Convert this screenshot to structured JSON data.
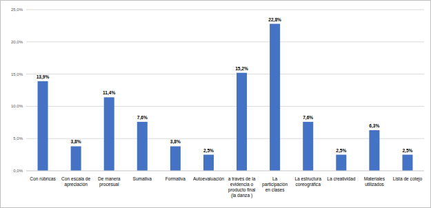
{
  "chart_data": {
    "type": "bar",
    "categories": [
      "Con rúbricas",
      "Con escala de apreciación",
      "De manera procesual",
      "Sumativa",
      "Formativa",
      "Autoevaluación",
      "a través de la evidencia o producto final (la danza )",
      "La participación en clases",
      "La estructura coreográfica",
      "La creatividad",
      "Materiales utilizados",
      "Lista de cotejo"
    ],
    "values": [
      13.9,
      3.8,
      11.4,
      7.6,
      3.8,
      2.5,
      15.2,
      22.8,
      7.6,
      2.5,
      6.3,
      2.5
    ],
    "value_labels": [
      "13,9%",
      "3,8%",
      "11,4%",
      "7,6%",
      "3,8%",
      "2,5%",
      "15,2%",
      "22,8%",
      "7,6%",
      "2,5%",
      "6,3%",
      "2,5%"
    ],
    "color": "#4472c4",
    "ylim": [
      0,
      25
    ],
    "yticks": [
      {
        "value": 0,
        "label": "0,0%"
      },
      {
        "value": 5,
        "label": "5,0%"
      },
      {
        "value": 10,
        "label": "10,0%"
      },
      {
        "value": 15,
        "label": "15,0%"
      },
      {
        "value": 20,
        "label": "20,0%"
      },
      {
        "value": 25,
        "label": "25,0%"
      }
    ],
    "grid": true,
    "data_labels": true
  }
}
